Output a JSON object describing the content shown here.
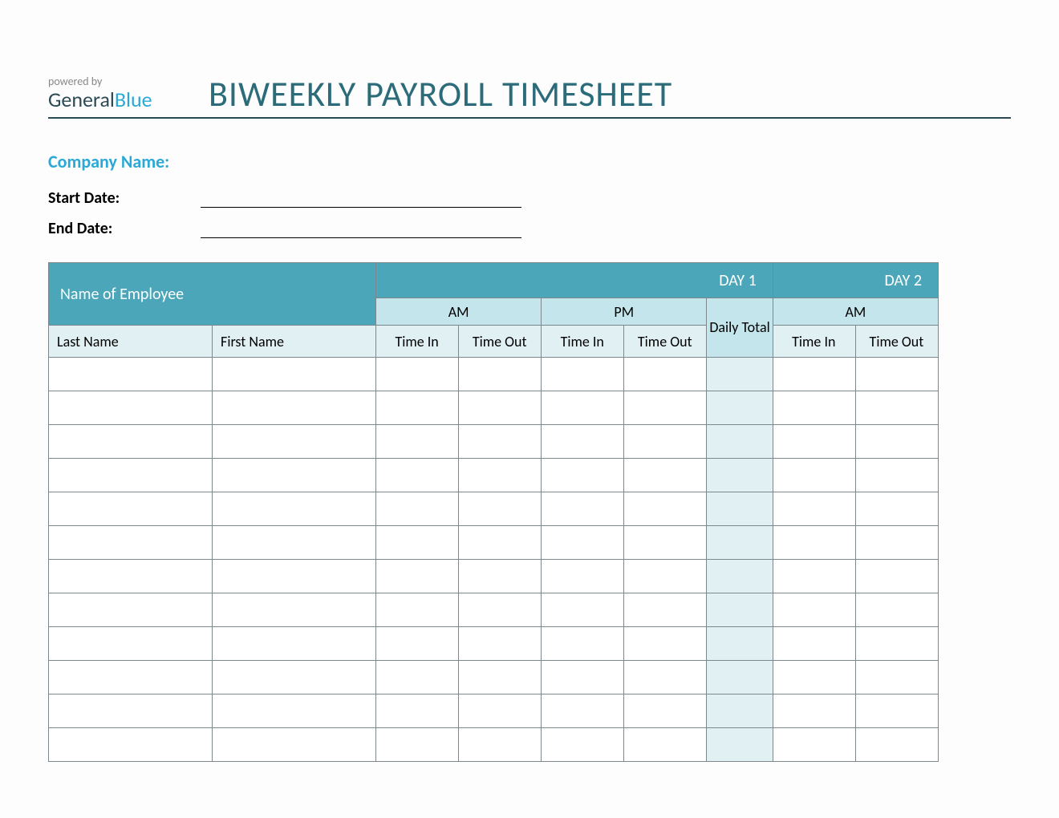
{
  "header": {
    "powered": "powered by",
    "brand_a": "General",
    "brand_b": "Blue",
    "title": "BIWEEKLY PAYROLL TIMESHEET"
  },
  "fields": {
    "company_label": "Company Name:",
    "start_label": "Start Date:",
    "end_label": "End Date:"
  },
  "table": {
    "emp_header": "Name of Employee",
    "day1": "DAY 1",
    "day2": "DAY 2",
    "am": "AM",
    "pm": "PM",
    "daily_total": "Daily Total",
    "last_name": "Last Name",
    "first_name": "First Name",
    "time_in": "Time In",
    "time_out": "Time Out",
    "row_count": 12
  },
  "colors": {
    "header_teal": "#4aa6b8",
    "sub_light": "#c4e5eb",
    "sub_lighter": "#e1f0f3",
    "border": "#7d888d",
    "title_color": "#2b6b7a",
    "accent_blue": "#2aa9d6"
  }
}
